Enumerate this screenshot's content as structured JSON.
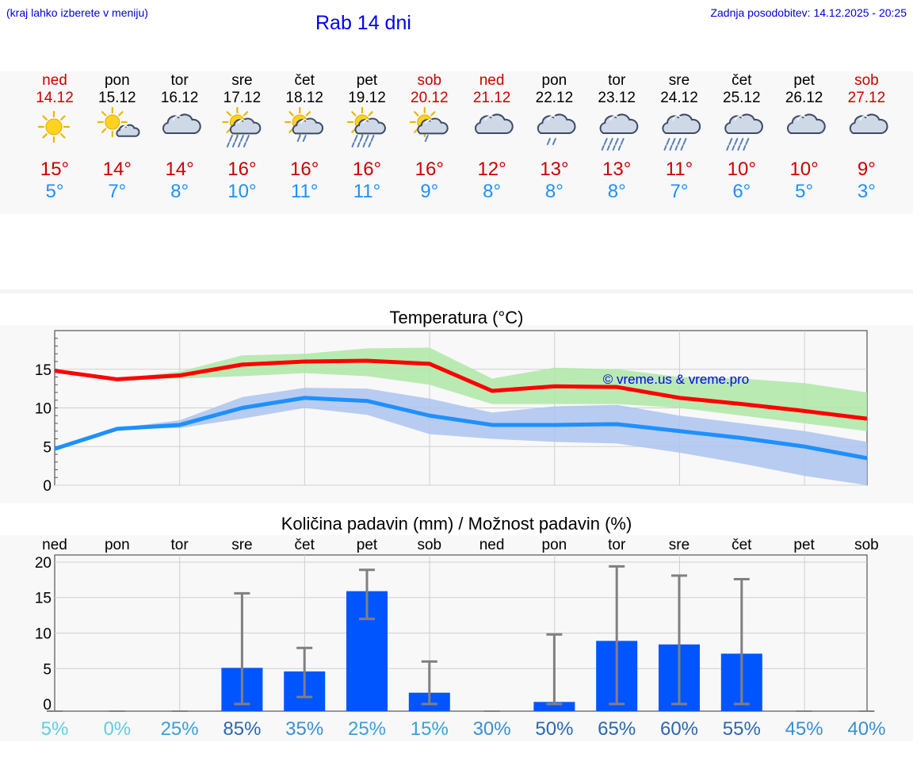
{
  "header": {
    "hint": "(kraj lahko izberete v meniju)",
    "title": "Rab 14 dni",
    "updated": "Zadnja posodobitev: 14.12.2025 - 20:25"
  },
  "colors": {
    "weekday": "#000000",
    "weekend": "#cc0000",
    "temp_max": "#cc0000",
    "temp_min": "#1e90ff",
    "max_line": "#ff0000",
    "min_line": "#1e90ff",
    "max_band": "#aee8a6",
    "min_band": "#adc4f0",
    "bar": "#0055ff",
    "errbar": "#808080",
    "watermark": "#0000ee"
  },
  "days": [
    {
      "name": "ned",
      "date": "14.12",
      "weekend": true,
      "icon": "sun-icon",
      "tmax": "15°",
      "tmin": "5°"
    },
    {
      "name": "pon",
      "date": "15.12",
      "weekend": false,
      "icon": "sun-cloud-icon",
      "tmax": "14°",
      "tmin": "7°"
    },
    {
      "name": "tor",
      "date": "16.12",
      "weekend": false,
      "icon": "cloud-icon",
      "tmax": "14°",
      "tmin": "8°"
    },
    {
      "name": "sre",
      "date": "17.12",
      "weekend": false,
      "icon": "sun-heavy-rain-icon",
      "tmax": "16°",
      "tmin": "10°"
    },
    {
      "name": "čet",
      "date": "18.12",
      "weekend": false,
      "icon": "sun-rain-icon",
      "tmax": "16°",
      "tmin": "11°"
    },
    {
      "name": "pet",
      "date": "19.12",
      "weekend": false,
      "icon": "sun-heavy-rain-icon",
      "tmax": "16°",
      "tmin": "11°"
    },
    {
      "name": "sob",
      "date": "20.12",
      "weekend": true,
      "icon": "sun-light-rain-icon",
      "tmax": "16°",
      "tmin": "9°"
    },
    {
      "name": "ned",
      "date": "21.12",
      "weekend": true,
      "icon": "cloud-icon",
      "tmax": "12°",
      "tmin": "8°"
    },
    {
      "name": "pon",
      "date": "22.12",
      "weekend": false,
      "icon": "cloud-light-rain-icon",
      "tmax": "13°",
      "tmin": "8°"
    },
    {
      "name": "tor",
      "date": "23.12",
      "weekend": false,
      "icon": "cloud-rain-icon",
      "tmax": "13°",
      "tmin": "8°"
    },
    {
      "name": "sre",
      "date": "24.12",
      "weekend": false,
      "icon": "cloud-rain-icon",
      "tmax": "11°",
      "tmin": "7°"
    },
    {
      "name": "čet",
      "date": "25.12",
      "weekend": false,
      "icon": "cloud-rain-icon",
      "tmax": "10°",
      "tmin": "6°"
    },
    {
      "name": "pet",
      "date": "26.12",
      "weekend": false,
      "icon": "cloud-icon",
      "tmax": "10°",
      "tmin": "5°"
    },
    {
      "name": "sob",
      "date": "27.12",
      "weekend": true,
      "icon": "cloud-icon",
      "tmax": "9°",
      "tmin": "3°"
    }
  ],
  "chart_data": [
    {
      "type": "line",
      "title": "Temperatura (°C)",
      "ylim": [
        0,
        20
      ],
      "yticks": [
        "0",
        "5",
        "10",
        "15"
      ],
      "watermark": "© vreme.us & vreme.pro",
      "grid": true,
      "series": [
        {
          "name": "max",
          "values": [
            14.8,
            13.7,
            14.2,
            15.6,
            16.0,
            16.1,
            15.7,
            12.2,
            12.8,
            12.7,
            11.3,
            10.5,
            9.6,
            8.6
          ],
          "band_low": [
            14.8,
            13.7,
            13.8,
            14.1,
            14.5,
            14.1,
            13.0,
            10.5,
            10.5,
            10.5,
            10.0,
            9.0,
            8.0,
            7.0
          ],
          "band_high": [
            14.8,
            13.8,
            14.7,
            16.8,
            17.0,
            17.7,
            17.8,
            13.8,
            15.2,
            15.0,
            14.0,
            13.8,
            13.2,
            12.0
          ]
        },
        {
          "name": "min",
          "values": [
            4.7,
            7.3,
            7.8,
            10.0,
            11.3,
            10.9,
            9.0,
            7.8,
            7.8,
            7.9,
            7.0,
            6.1,
            5.0,
            3.5
          ],
          "band_low": [
            4.5,
            7.2,
            7.4,
            8.6,
            10.0,
            9.1,
            6.6,
            6.0,
            5.6,
            5.4,
            4.2,
            2.8,
            1.2,
            0.0
          ],
          "band_high": [
            4.9,
            7.4,
            8.4,
            11.4,
            12.6,
            12.5,
            11.2,
            9.4,
            10.2,
            10.4,
            9.0,
            8.0,
            7.0,
            5.6
          ]
        }
      ]
    },
    {
      "type": "bar",
      "title": "Količina padavin (mm) / Možnost padavin (%)",
      "categories": [
        "ned",
        "pon",
        "tor",
        "sre",
        "čet",
        "pet",
        "sob",
        "ned",
        "pon",
        "tor",
        "sre",
        "čet",
        "pet",
        "sob"
      ],
      "ylim": [
        -1,
        21
      ],
      "yticks": [
        "0",
        "5",
        "10",
        "15",
        "20"
      ],
      "values": [
        0,
        0,
        0,
        5.1,
        4.6,
        15.9,
        1.6,
        0,
        0.3,
        8.9,
        8.4,
        7.1,
        0,
        0
      ],
      "err_low": [
        0,
        0,
        0,
        0,
        1.0,
        12.0,
        0,
        0,
        0,
        0,
        0,
        0,
        0,
        0
      ],
      "err_high": [
        0,
        0,
        0,
        15.6,
        7.9,
        18.9,
        6.0,
        0,
        9.8,
        19.4,
        18.1,
        17.6,
        0,
        0
      ],
      "chance": [
        "5%",
        "0%",
        "25%",
        "85%",
        "35%",
        "25%",
        "15%",
        "30%",
        "50%",
        "65%",
        "60%",
        "55%",
        "45%",
        "40%"
      ],
      "chance_colors": [
        "#5ecfe0",
        "#5ecfe0",
        "#3aa0d8",
        "#2c67b0",
        "#3a8fd0",
        "#3aa0d8",
        "#3aa0d8",
        "#3a8fd0",
        "#2c67b0",
        "#2c67b0",
        "#2c67b0",
        "#2c67b0",
        "#3a8fd0",
        "#3a8fd0"
      ]
    }
  ]
}
